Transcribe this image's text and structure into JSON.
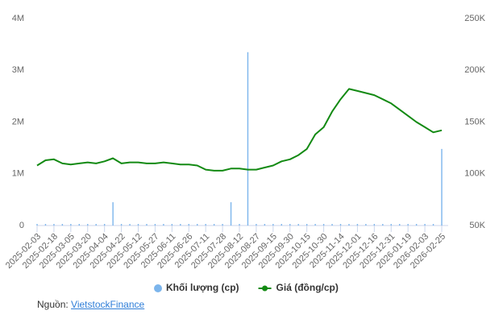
{
  "chart_data": {
    "type": "combo",
    "categories": [
      "2025-02-03",
      null,
      "2025-02-18",
      null,
      "2025-03-05",
      null,
      "2025-03-20",
      null,
      "2025-04-04",
      null,
      "2025-04-22",
      null,
      "2025-05-12",
      null,
      "2025-05-27",
      null,
      "2025-06-11",
      null,
      "2025-06-26",
      null,
      "2025-07-11",
      null,
      "2025-07-28",
      null,
      "2025-08-12",
      null,
      "2025-08-27",
      null,
      "2025-09-15",
      null,
      "2025-09-30",
      null,
      "2025-10-15",
      null,
      "2025-10-30",
      null,
      "2025-11-14",
      null,
      "2025-12-01",
      null,
      "2025-12-16",
      null,
      "2025-12-31",
      null,
      "2026-01-19",
      null,
      "2026-02-03",
      null,
      "2026-02-25"
    ],
    "series": [
      {
        "name": "Khối lượng (cp)",
        "type": "bar",
        "color": "#7cb5ec",
        "values": [
          30000,
          30000,
          30000,
          30000,
          30000,
          30000,
          30000,
          30000,
          30000,
          450000,
          30000,
          30000,
          30000,
          30000,
          30000,
          30000,
          30000,
          30000,
          30000,
          30000,
          30000,
          30000,
          30000,
          450000,
          30000,
          3350000,
          30000,
          30000,
          30000,
          30000,
          30000,
          30000,
          30000,
          30000,
          30000,
          30000,
          30000,
          30000,
          30000,
          30000,
          30000,
          30000,
          30000,
          30000,
          30000,
          30000,
          30000,
          30000,
          1480000
        ]
      },
      {
        "name": "Giá (đồng/cp)",
        "type": "line",
        "axis": "y2",
        "color": "#138a13",
        "values": [
          108000,
          113000,
          114000,
          110000,
          109000,
          110000,
          111000,
          110000,
          112000,
          115000,
          110000,
          111000,
          111000,
          110000,
          110000,
          111000,
          110000,
          109000,
          109000,
          108000,
          104000,
          103000,
          103000,
          105000,
          105000,
          104000,
          104000,
          106000,
          108000,
          112000,
          114000,
          118000,
          124000,
          138000,
          145000,
          160000,
          172000,
          182000,
          180000,
          178000,
          176000,
          172000,
          168000,
          162000,
          156000,
          150000,
          145000,
          140000,
          142000
        ]
      }
    ],
    "ylim": [
      0,
      4000000
    ],
    "yticks": [
      0,
      {
        "value": 1000000,
        "label": "1M"
      },
      {
        "value": 2000000,
        "label": "2M"
      },
      {
        "value": 3000000,
        "label": "3M"
      },
      {
        "value": 4000000,
        "label": "4M"
      }
    ],
    "y2lim": [
      50000,
      250000
    ],
    "y2ticks": [
      {
        "value": 50000,
        "label": "50K"
      },
      {
        "value": 100000,
        "label": "100K"
      },
      {
        "value": 150000,
        "label": "150K"
      },
      {
        "value": 200000,
        "label": "200K"
      },
      {
        "value": 250000,
        "label": "250K"
      }
    ],
    "source_label": "Nguồn:",
    "source": "VietstockFinance"
  }
}
